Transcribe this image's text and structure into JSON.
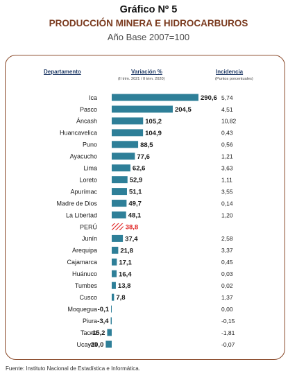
{
  "header": {
    "figure_label": "Gráfico Nº 5",
    "title": "PRODUCCIÓN MINERA E HIDROCARBUROS",
    "subtitle": "Año Base 2007=100"
  },
  "columns": {
    "department": "Departamento",
    "variation": "Variación %",
    "variation_period": "(II trim. 2021 / II trim. 2020)",
    "incidence": "Incidencia",
    "incidence_units": "(Puntos porcentuales)"
  },
  "source": "Fuente: Instituto Nacional de Estadística e Informática.",
  "colors": {
    "bar": "#2e7f98",
    "highlight": "#e02020",
    "frame": "#8a4a2a",
    "header": "#1f3a66"
  },
  "chart_data": {
    "type": "bar",
    "orientation": "horizontal",
    "categories": [
      "Ica",
      "Pasco",
      "Áncash",
      "Huancavelica",
      "Puno",
      "Ayacucho",
      "Lima",
      "Loreto",
      "Apurímac",
      "Madre de Dios",
      "La Libertad",
      "PERÚ",
      "Junín",
      "Arequipa",
      "Cajamarca",
      "Huánuco",
      "Tumbes",
      "Cusco",
      "Moquegua",
      "Piura",
      "Tacna",
      "Ucayali"
    ],
    "values": [
      290.6,
      204.5,
      105.2,
      104.9,
      88.5,
      77.6,
      62.6,
      52.9,
      51.1,
      49.7,
      48.1,
      38.8,
      37.4,
      21.8,
      17.1,
      16.4,
      13.8,
      7.8,
      -0.1,
      -3.4,
      -15.2,
      -20.0
    ],
    "value_labels": [
      "290,6",
      "204,5",
      "105,2",
      "104,9",
      "88,5",
      "77,6",
      "62,6",
      "52,9",
      "51,1",
      "49,7",
      "48,1",
      "38,8",
      "37,4",
      "21,8",
      "17,1",
      "16,4",
      "13,8",
      "7,8",
      "-0,1",
      "-3,4",
      "-15,2",
      "-20,0"
    ],
    "incidence": [
      "5,74",
      "4,51",
      "10,82",
      "0,43",
      "0,56",
      "1,21",
      "3,63",
      "1,11",
      "3,55",
      "0,14",
      "1,20",
      "",
      "2,58",
      "3,37",
      "0,45",
      "0,03",
      "0,02",
      "1,37",
      "0,00",
      "-0,15",
      "-1,81",
      "-0,07"
    ],
    "highlight_category": "PERÚ",
    "xlim": [
      -20.0,
      290.6
    ]
  }
}
